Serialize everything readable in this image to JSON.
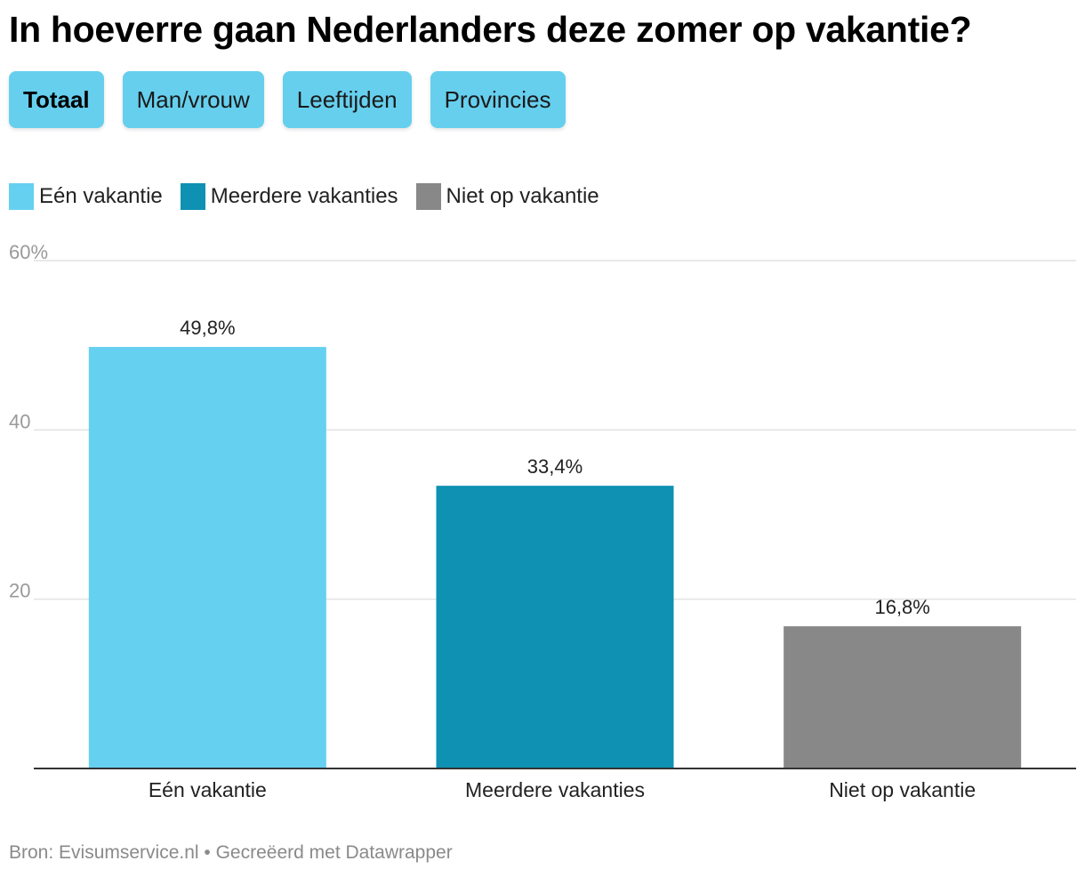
{
  "title": "In hoeverre gaan Nederlanders deze zomer op vakantie?",
  "tabs": [
    {
      "label": "Totaal",
      "active": true
    },
    {
      "label": "Man/vrouw",
      "active": false
    },
    {
      "label": "Leeftijden",
      "active": false
    },
    {
      "label": "Provincies",
      "active": false
    }
  ],
  "colors": {
    "een": "#66d0f0",
    "meerdere": "#0e91b2",
    "niet": "#888888",
    "tab_bg": "#66cfee",
    "grid": "#e2e2e2",
    "axis_text": "#9a9a9a"
  },
  "chart_data": {
    "type": "bar",
    "title": "In hoeverre gaan Nederlanders deze zomer op vakantie?",
    "categories": [
      "Eén vakantie",
      "Meerdere vakanties",
      "Niet op vakantie"
    ],
    "values": [
      49.8,
      33.4,
      16.8
    ],
    "value_labels": [
      "49,8%",
      "33,4%",
      "16,8%"
    ],
    "colors": [
      "#66d0f0",
      "#0e91b2",
      "#888888"
    ],
    "legend": [
      "Eén vakantie",
      "Meerdere vakanties",
      "Niet op vakantie"
    ],
    "legend_position": "top-left",
    "ylim": [
      0,
      60
    ],
    "yticks": [
      20,
      40,
      60
    ],
    "ytick_labels": [
      "20",
      "40",
      "60%"
    ],
    "grid": true,
    "xlabel": "",
    "ylabel": ""
  },
  "footer": "Bron: Evisumservice.nl • Gecreëerd met Datawrapper"
}
